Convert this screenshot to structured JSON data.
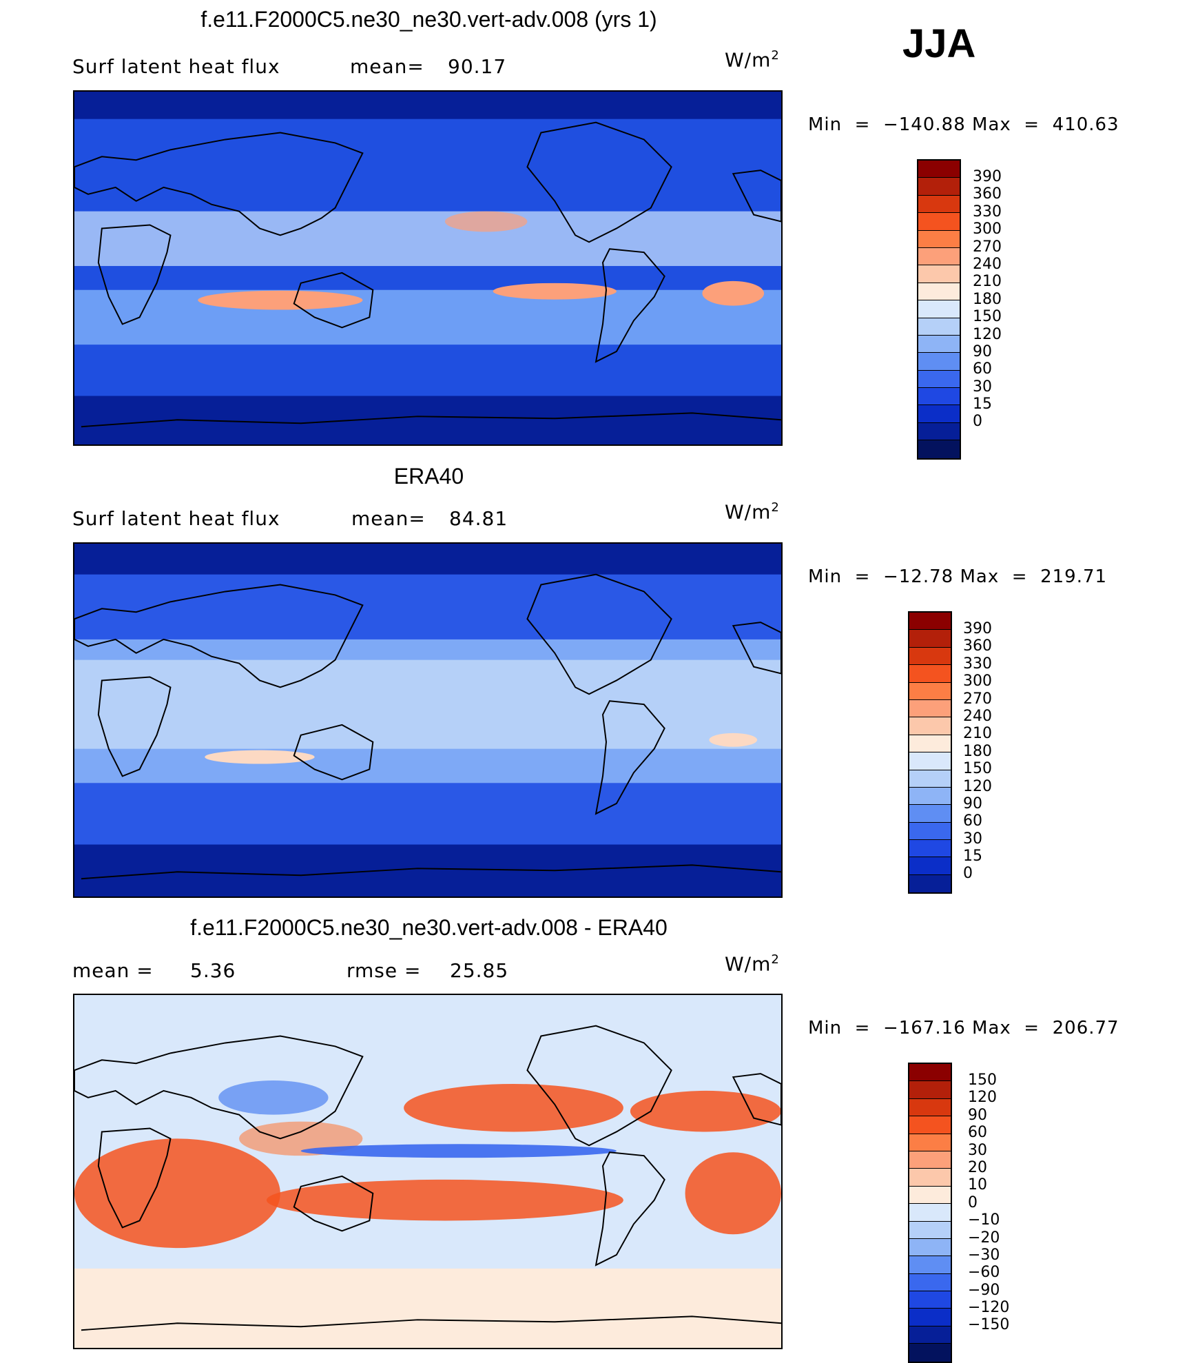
{
  "season": "JJA",
  "panels": [
    {
      "title": "f.e11.F2000C5.ne30_ne30.vert-adv.008 (yrs 1)",
      "left_label": "Surf latent heat flux",
      "stat_label": "mean=",
      "stat_value": "90.17",
      "unit": "W/m",
      "unit_exp": "2",
      "min_label": "Min",
      "min": "−140.88",
      "max_label": "Max",
      "max": "410.63",
      "colorbar": {
        "colors": [
          "#8b0000",
          "#b3200a",
          "#d8380f",
          "#f4531f",
          "#fc7e45",
          "#fca07a",
          "#fcc8ab",
          "#fdebdc",
          "#d9e8fb",
          "#b5d0f8",
          "#8eb4f6",
          "#5f8ef3",
          "#3a68ee",
          "#1f48e3",
          "#0b2ec8",
          "#061f98",
          "#03125e"
        ],
        "labels": [
          "390",
          "360",
          "330",
          "300",
          "270",
          "240",
          "210",
          "180",
          "150",
          "120",
          "90",
          "60",
          "30",
          "15",
          "0"
        ]
      },
      "map": {
        "base": "#1f4fe0",
        "ocean_band": "#6d9ef5",
        "tropics": "#b8d2fa",
        "warm": "#fca07a",
        "polar": "#061f98"
      }
    },
    {
      "title": "ERA40",
      "left_label": "Surf latent heat flux",
      "stat_label": "mean=",
      "stat_value": "84.81",
      "unit": "W/m",
      "unit_exp": "2",
      "min_label": "Min",
      "min": "−12.78",
      "max_label": "Max",
      "max": "219.71",
      "colorbar": {
        "colors": [
          "#8b0000",
          "#b3200a",
          "#d8380f",
          "#f4531f",
          "#fc7e45",
          "#fca07a",
          "#fcc8ab",
          "#fdebdc",
          "#d9e8fb",
          "#b5d0f8",
          "#8eb4f6",
          "#5f8ef3",
          "#3a68ee",
          "#1f48e3",
          "#0b2ec8",
          "#061f98"
        ],
        "labels": [
          "390",
          "360",
          "330",
          "300",
          "270",
          "240",
          "210",
          "180",
          "150",
          "120",
          "90",
          "60",
          "30",
          "15",
          "0"
        ]
      },
      "map": {
        "base": "#2a58e6",
        "ocean_band": "#7ea9f6",
        "tropics": "#b5d0f8",
        "warm": "#fcd9c3",
        "polar": "#061f98"
      }
    },
    {
      "title": "f.e11.F2000C5.ne30_ne30.vert-adv.008 - ERA40",
      "left_label": "mean =",
      "left_value": "5.36",
      "stat_label": "rmse =",
      "stat_value": "25.85",
      "unit": "W/m",
      "unit_exp": "2",
      "min_label": "Min",
      "min": "−167.16",
      "max_label": "Max",
      "max": "206.77",
      "colorbar": {
        "colors": [
          "#8b0000",
          "#b3200a",
          "#d8380f",
          "#f4531f",
          "#fc7e45",
          "#fca07a",
          "#fcc8ab",
          "#fdebdc",
          "#d9e8fb",
          "#b5d0f8",
          "#8eb4f6",
          "#5f8ef3",
          "#3a68ee",
          "#1f48e3",
          "#0b2ec8",
          "#061f98",
          "#03125e"
        ],
        "labels": [
          "150",
          "120",
          "90",
          "60",
          "30",
          "20",
          "10",
          "0",
          "−10",
          "−20",
          "−30",
          "−60",
          "−90",
          "−120",
          "−150"
        ]
      },
      "map": {
        "base": "#d9e8fb",
        "ocean_band": "#fdebdc",
        "tropics": "#f4531f",
        "warm": "#fc7e45",
        "polar": "#d9e8fb"
      }
    }
  ]
}
